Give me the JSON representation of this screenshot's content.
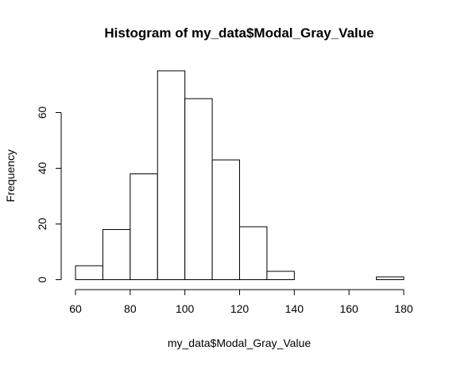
{
  "chart_data": {
    "type": "bar",
    "title": "Histogram of my_data$Modal_Gray_Value",
    "xlabel": "my_data$Modal_Gray_Value",
    "ylabel": "Frequency",
    "bins": [
      {
        "start": 60,
        "end": 70,
        "count": 5
      },
      {
        "start": 70,
        "end": 80,
        "count": 18
      },
      {
        "start": 80,
        "end": 90,
        "count": 38
      },
      {
        "start": 90,
        "end": 100,
        "count": 75
      },
      {
        "start": 100,
        "end": 110,
        "count": 65
      },
      {
        "start": 110,
        "end": 120,
        "count": 43
      },
      {
        "start": 120,
        "end": 130,
        "count": 19
      },
      {
        "start": 130,
        "end": 140,
        "count": 3
      },
      {
        "start": 140,
        "end": 150,
        "count": 0
      },
      {
        "start": 150,
        "end": 160,
        "count": 0
      },
      {
        "start": 160,
        "end": 170,
        "count": 0
      },
      {
        "start": 170,
        "end": 180,
        "count": 1
      }
    ],
    "xlim": [
      60,
      180
    ],
    "ylim": [
      0,
      75
    ],
    "x_ticks": [
      60,
      80,
      100,
      120,
      140,
      160,
      180
    ],
    "y_ticks": [
      0,
      20,
      40,
      60
    ],
    "grid": false,
    "legend": "none"
  }
}
